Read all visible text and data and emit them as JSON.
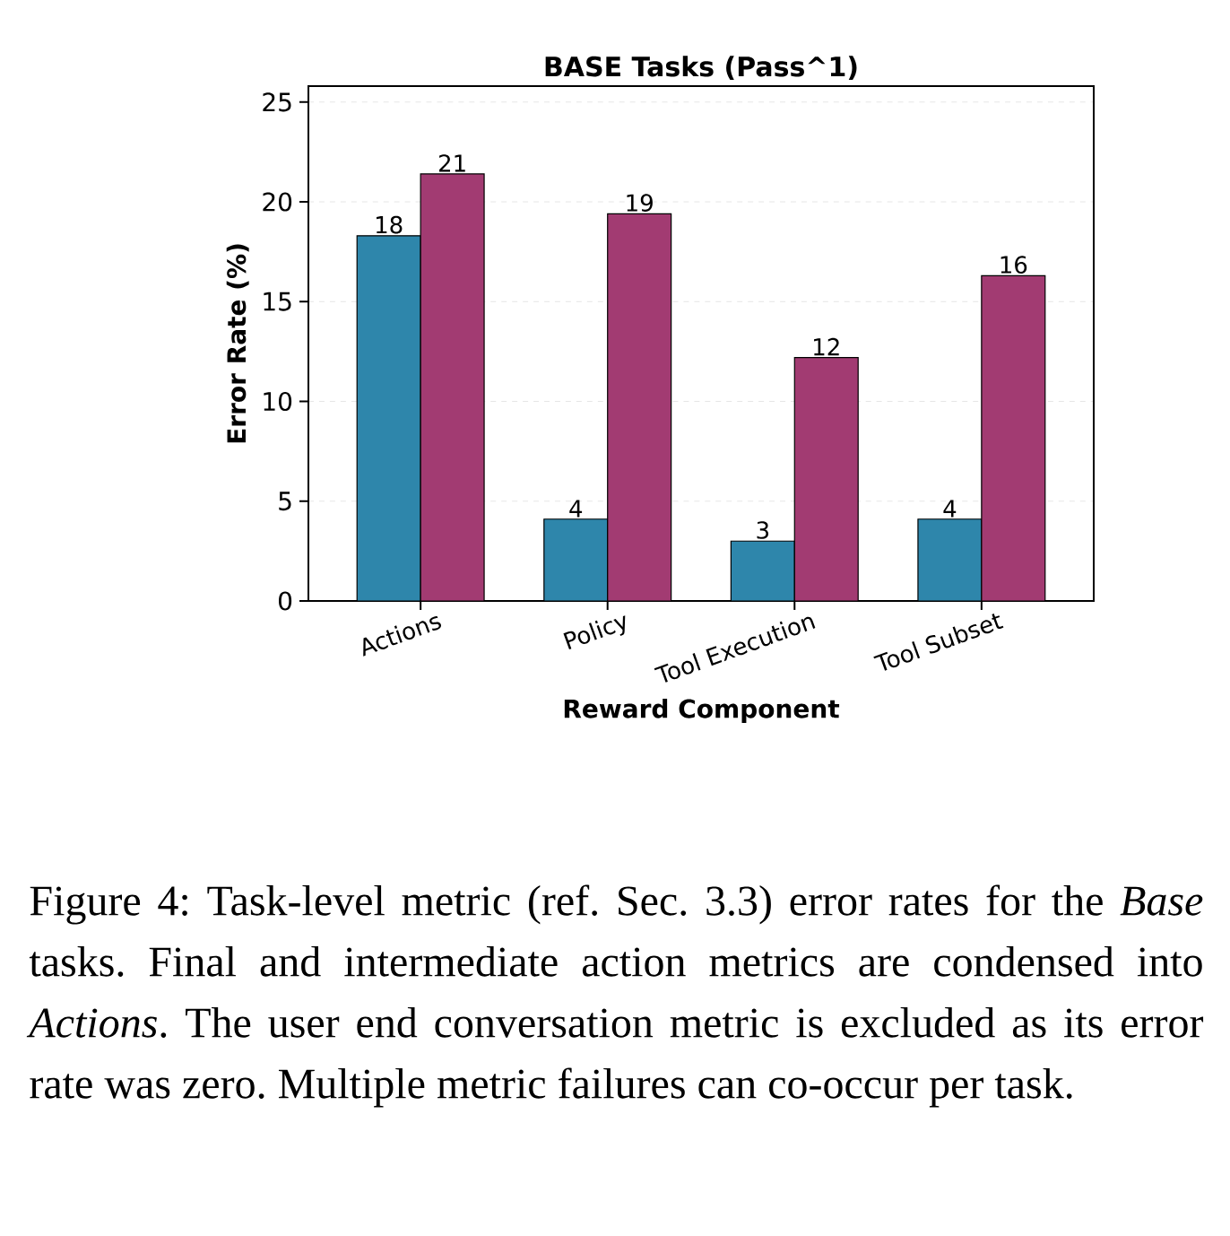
{
  "chart_data": {
    "type": "bar",
    "title": "BASE Tasks (Pass^1)",
    "xlabel": "Reward Component",
    "ylabel": "Error Rate (%)",
    "categories": [
      "Actions",
      "Policy",
      "Tool Execution",
      "Tool Subset"
    ],
    "series": [
      {
        "color": "#2e86ab",
        "values": [
          18.3,
          4.1,
          3.0,
          4.1
        ],
        "value_labels": [
          "18",
          "4",
          "3",
          "4"
        ]
      },
      {
        "color": "#a23b72",
        "values": [
          21.4,
          19.4,
          12.2,
          16.3
        ],
        "value_labels": [
          "21",
          "19",
          "12",
          "16"
        ]
      }
    ],
    "ylim": [
      0,
      25.8
    ],
    "yticks": [
      0,
      5,
      10,
      15,
      20,
      25
    ],
    "grid": "y",
    "annotations": [
      "Figure 4: Task-level metric (ref. Sec. 3.3) error rates for the *Base* tasks. Final and intermediate action metrics are condensed into *Actions*. The user end conversation metric is excluded as its error rate was zero. Multiple metric failures can co-occur per task."
    ]
  }
}
